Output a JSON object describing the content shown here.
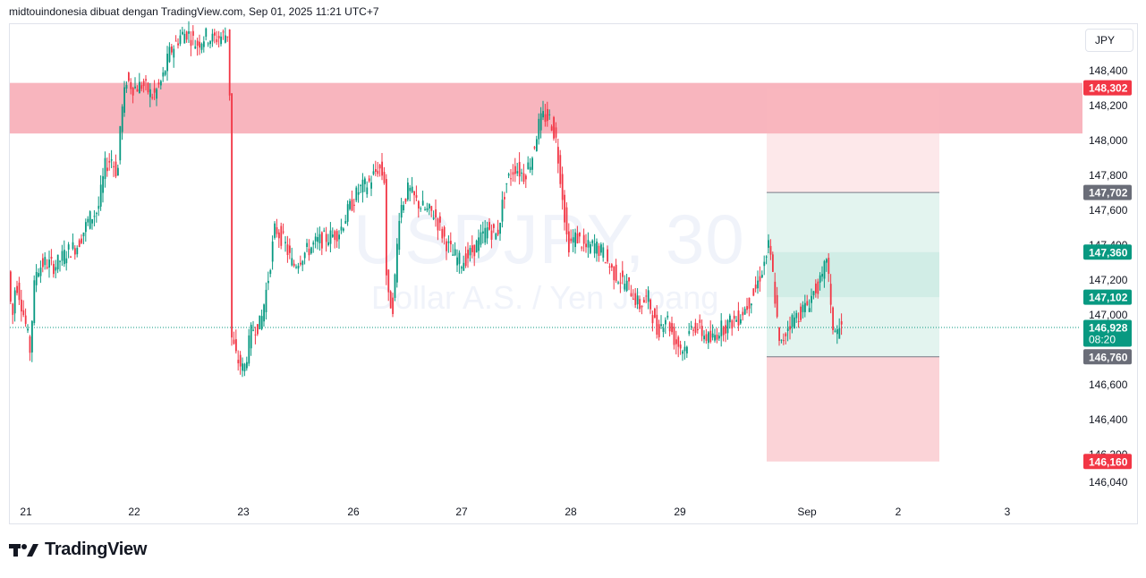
{
  "header": {
    "text": "midtouindonesia dibuat dengan TradingView.com, Sep 01, 2025 11:21 UTC+7"
  },
  "currency_label": "JPY",
  "watermark": {
    "symbol": "USDJPY, 30",
    "description": "Dollar A.S. / Yen Jepang"
  },
  "footer": {
    "brand": "TradingView"
  },
  "colors": {
    "up": "#089981",
    "down": "#f23645",
    "zone": "#f7a8b3",
    "target": "#d1ede6",
    "stop": "#fbd3d7"
  },
  "chart_data": {
    "type": "candlestick",
    "symbol": "USDJPY",
    "timeframe": "30",
    "y_axis": {
      "ticks": [
        "146,040",
        "146,200",
        "146,400",
        "146,600",
        "147,000",
        "147,200",
        "147,400",
        "147,600",
        "147,800",
        "148,000",
        "148,200",
        "148,400"
      ],
      "range": [
        146.0,
        148.65
      ]
    },
    "x_axis": {
      "ticks": [
        "21",
        "22",
        "23",
        "26",
        "27",
        "28",
        "29",
        "Sep",
        "2",
        "3"
      ]
    },
    "price_labels": [
      {
        "value": "148,302",
        "color": "#f23645"
      },
      {
        "value": "147,702",
        "color": "#6a6d78"
      },
      {
        "value": "147,360",
        "color": "#089981"
      },
      {
        "value": "147,102",
        "color": "#089981"
      },
      {
        "value": "146,928",
        "sub": "08:20",
        "color": "#089981"
      },
      {
        "value": "146,760",
        "color": "#6a6d78"
      },
      {
        "value": "146,160",
        "color": "#f23645"
      }
    ],
    "resistance_zone": {
      "from": 148.04,
      "to": 148.33
    },
    "position_tool": {
      "entry": 146.76,
      "target": 147.702,
      "stop": 146.16,
      "top": 148.3
    },
    "inner_zone": {
      "from": 147.102,
      "to": 147.36
    },
    "last_price": 146.928,
    "price_path": [
      [
        0,
        147.25
      ],
      [
        4,
        146.95
      ],
      [
        8,
        147.2
      ],
      [
        13,
        147.1
      ],
      [
        19,
        146.95
      ],
      [
        24,
        146.8
      ],
      [
        30,
        147.25
      ],
      [
        40,
        147.3
      ],
      [
        52,
        147.28
      ],
      [
        65,
        147.36
      ],
      [
        77,
        147.4
      ],
      [
        90,
        147.55
      ],
      [
        100,
        147.6
      ],
      [
        108,
        147.85
      ],
      [
        115,
        147.9
      ],
      [
        122,
        147.8
      ],
      [
        125,
        148.1
      ],
      [
        132,
        148.35
      ],
      [
        140,
        148.3
      ],
      [
        150,
        148.32
      ],
      [
        162,
        148.25
      ],
      [
        172,
        148.35
      ],
      [
        180,
        148.5
      ],
      [
        192,
        148.6
      ],
      [
        200,
        148.62
      ],
      [
        210,
        148.55
      ],
      [
        220,
        148.6
      ],
      [
        228,
        148.58
      ],
      [
        240,
        148.6
      ],
      [
        247,
        148.62
      ],
      [
        248,
        146.9
      ],
      [
        255,
        146.75
      ],
      [
        263,
        146.68
      ],
      [
        272,
        146.92
      ],
      [
        282,
        146.95
      ],
      [
        290,
        147.2
      ],
      [
        298,
        147.5
      ],
      [
        308,
        147.42
      ],
      [
        318,
        147.28
      ],
      [
        330,
        147.35
      ],
      [
        345,
        147.42
      ],
      [
        360,
        147.45
      ],
      [
        370,
        147.48
      ],
      [
        380,
        147.6
      ],
      [
        392,
        147.72
      ],
      [
        402,
        147.75
      ],
      [
        414,
        147.85
      ],
      [
        420,
        147.78
      ],
      [
        423,
        147.1
      ],
      [
        430,
        147.05
      ],
      [
        437,
        147.6
      ],
      [
        447,
        147.72
      ],
      [
        456,
        147.65
      ],
      [
        466,
        147.6
      ],
      [
        476,
        147.58
      ],
      [
        486,
        147.45
      ],
      [
        496,
        147.35
      ],
      [
        506,
        147.3
      ],
      [
        516,
        147.35
      ],
      [
        526,
        147.42
      ],
      [
        536,
        147.5
      ],
      [
        546,
        147.45
      ],
      [
        556,
        147.75
      ],
      [
        566,
        147.85
      ],
      [
        576,
        147.8
      ],
      [
        585,
        147.9
      ],
      [
        592,
        148.08
      ],
      [
        598,
        148.14
      ],
      [
        606,
        148.12
      ],
      [
        612,
        148.0
      ],
      [
        618,
        147.75
      ],
      [
        625,
        147.4
      ],
      [
        635,
        147.45
      ],
      [
        645,
        147.38
      ],
      [
        655,
        147.4
      ],
      [
        665,
        147.35
      ],
      [
        675,
        147.25
      ],
      [
        685,
        147.2
      ],
      [
        695,
        147.15
      ],
      [
        705,
        147.05
      ],
      [
        715,
        147.1
      ],
      [
        725,
        146.9
      ],
      [
        735,
        147.0
      ],
      [
        745,
        146.85
      ],
      [
        755,
        146.8
      ],
      [
        765,
        146.95
      ],
      [
        775,
        146.9
      ],
      [
        785,
        146.85
      ],
      [
        795,
        146.92
      ],
      [
        805,
        146.95
      ],
      [
        815,
        146.98
      ],
      [
        825,
        147.05
      ],
      [
        835,
        147.15
      ],
      [
        845,
        147.3
      ],
      [
        850,
        147.4
      ],
      [
        855,
        147.2
      ],
      [
        862,
        146.8
      ],
      [
        872,
        146.95
      ],
      [
        882,
        147.0
      ],
      [
        892,
        147.05
      ],
      [
        902,
        147.15
      ],
      [
        910,
        147.2
      ],
      [
        915,
        147.36
      ],
      [
        920,
        146.95
      ],
      [
        926,
        146.9
      ],
      [
        930,
        146.93
      ]
    ]
  }
}
